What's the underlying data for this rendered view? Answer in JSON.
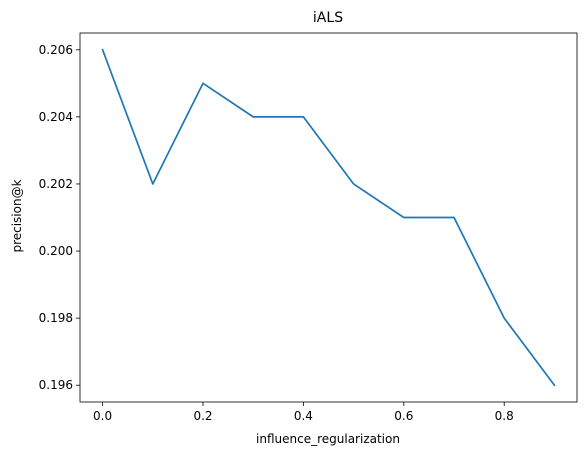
{
  "chart_data": {
    "type": "line",
    "title": "iALS",
    "xlabel": "influence_regularization",
    "ylabel": "precision@k",
    "x": [
      0.0,
      0.1,
      0.2,
      0.3,
      0.4,
      0.5,
      0.6,
      0.7,
      0.8,
      0.9
    ],
    "series": [
      {
        "values": [
          0.206,
          0.202,
          0.205,
          0.204,
          0.204,
          0.202,
          0.201,
          0.201,
          0.198,
          0.196
        ]
      }
    ],
    "xlim": [
      -0.045,
      0.945
    ],
    "ylim": [
      0.1955,
      0.2065
    ],
    "xticks": [
      0.0,
      0.2,
      0.4,
      0.6,
      0.8
    ],
    "xtick_labels": [
      "0.0",
      "0.2",
      "0.4",
      "0.6",
      "0.8"
    ],
    "yticks": [
      0.196,
      0.198,
      0.2,
      0.202,
      0.204,
      0.206
    ],
    "ytick_labels": [
      "0.196",
      "0.198",
      "0.200",
      "0.202",
      "0.204",
      "0.206"
    ],
    "grid": false,
    "legend": "none",
    "colors": {
      "line": "#1f77b4",
      "axes": "#000000"
    }
  }
}
